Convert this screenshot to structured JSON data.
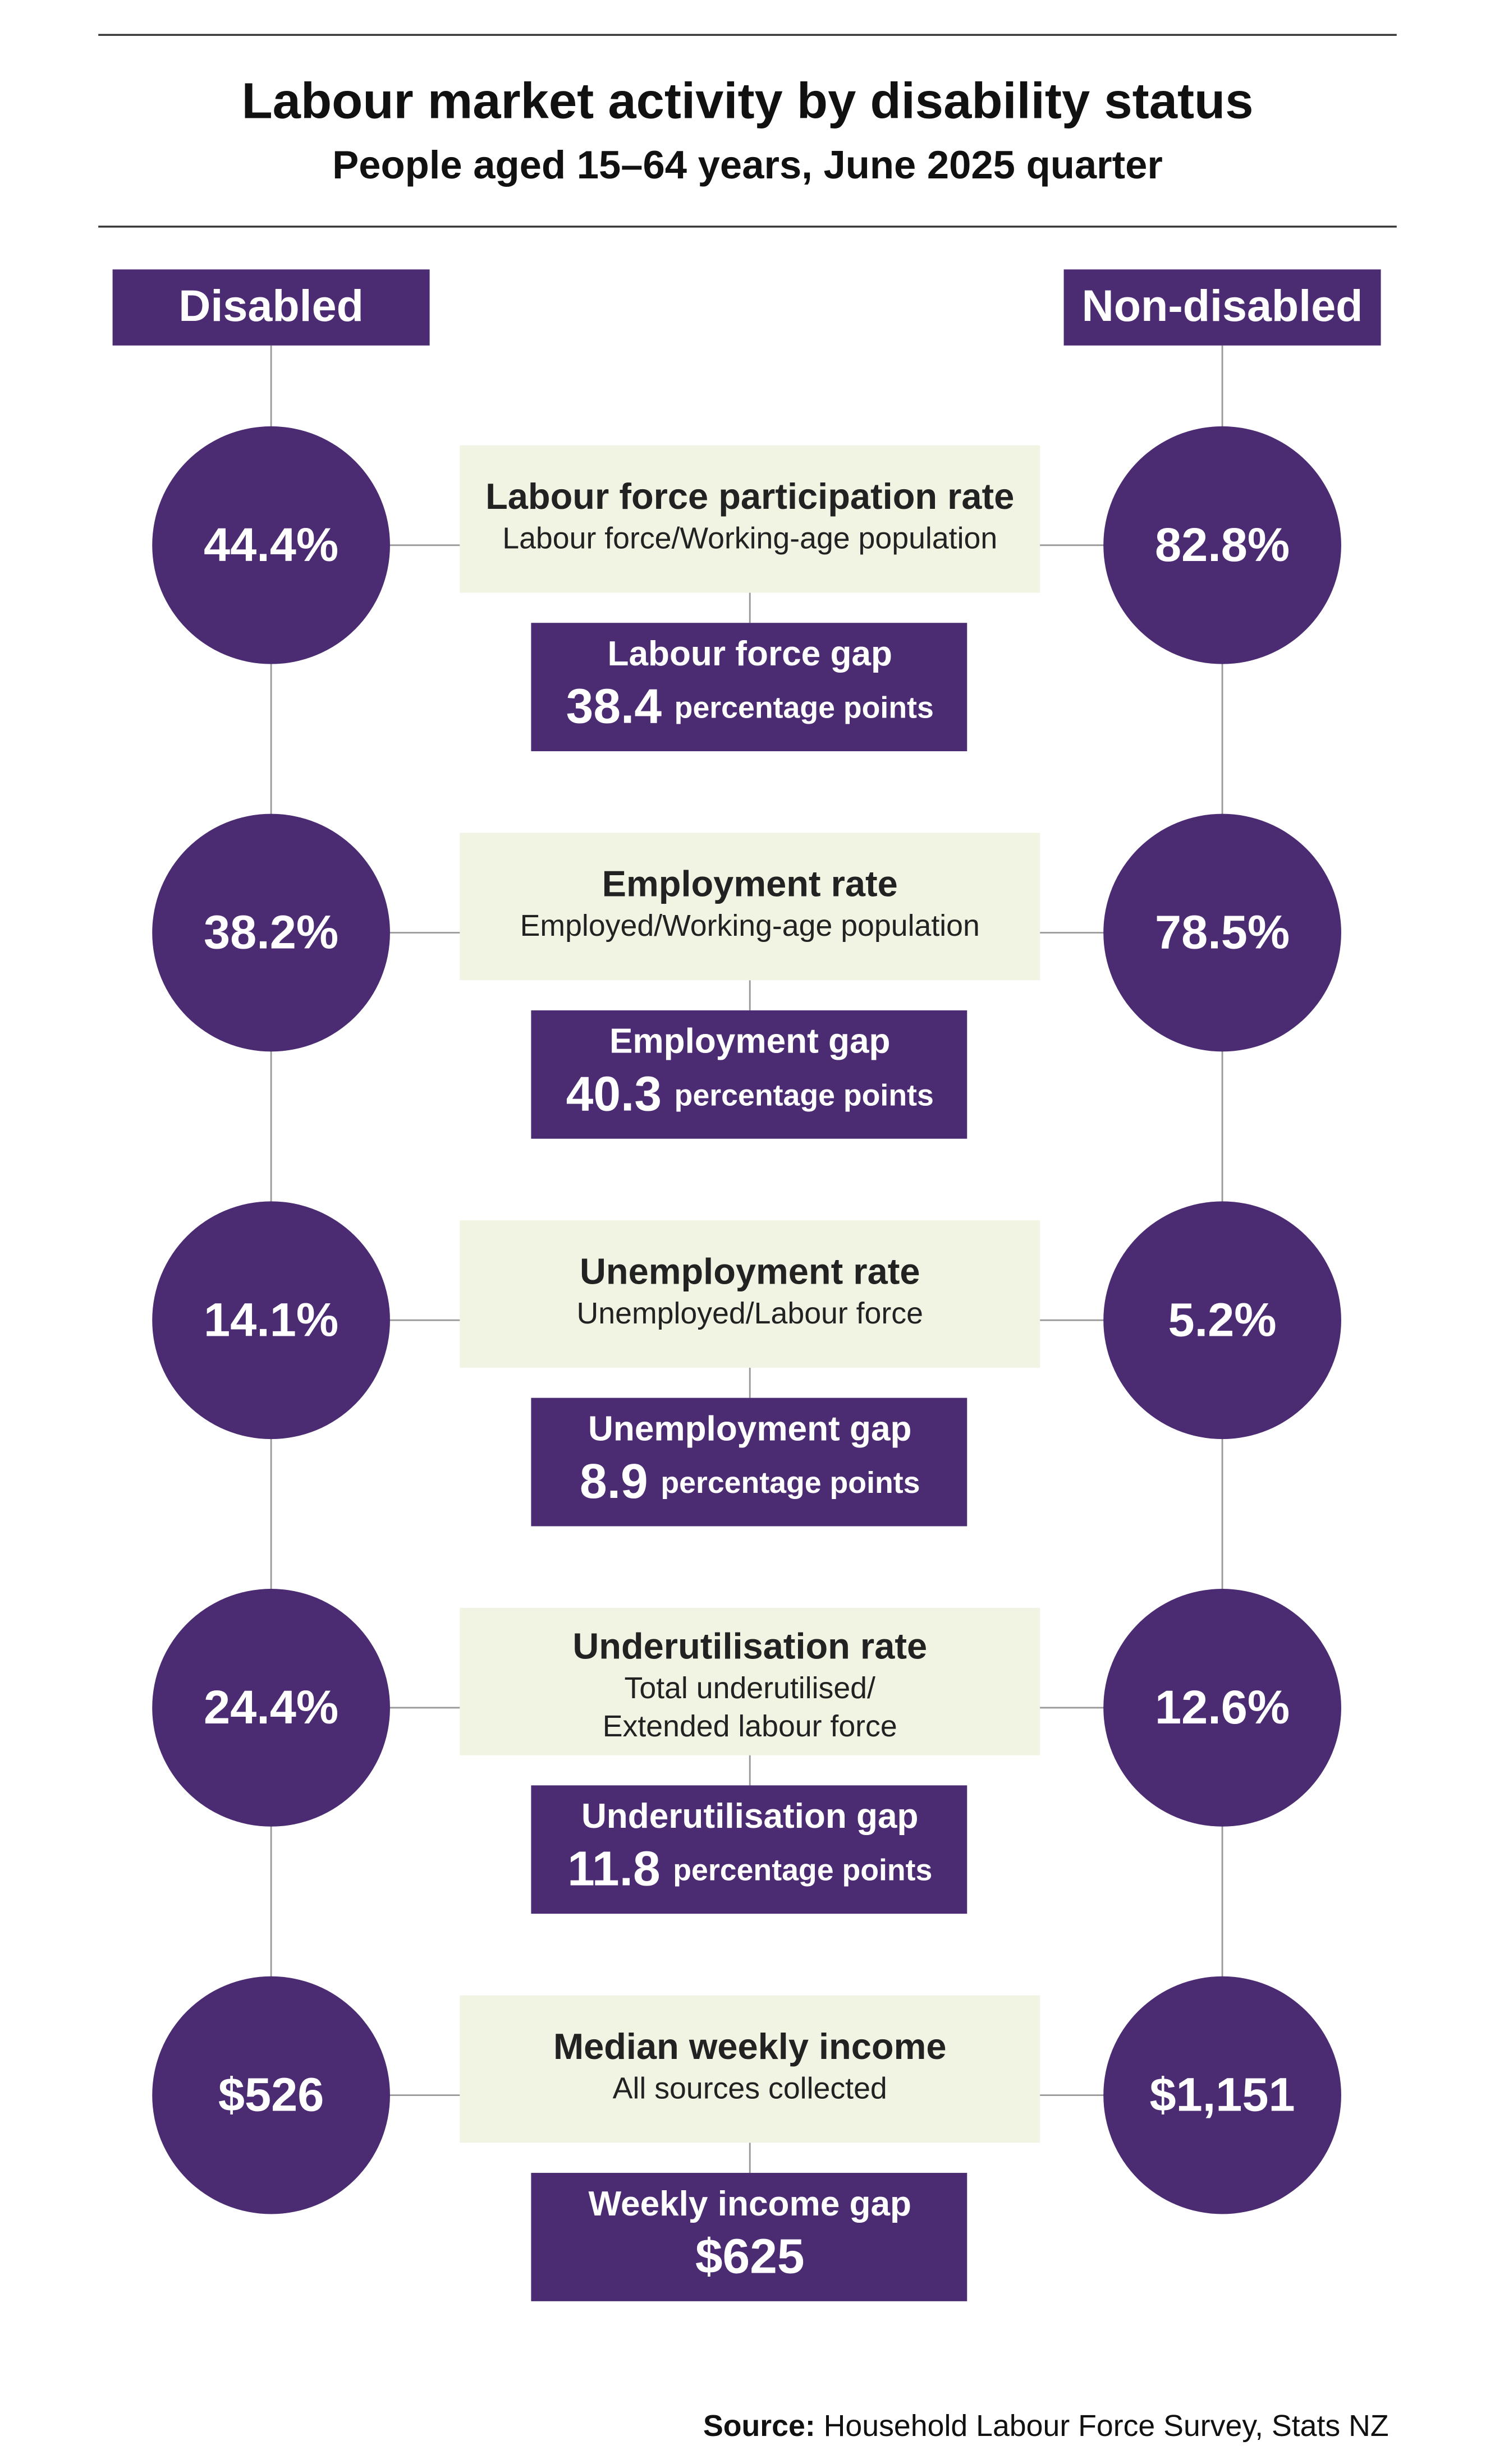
{
  "header": {
    "title": "Labour market activity by disability status",
    "subtitle": "People aged 15–64 years, June 2025 quarter"
  },
  "columns": {
    "left": "Disabled",
    "right": "Non-disabled"
  },
  "rows": [
    {
      "left": "44.4%",
      "right": "82.8%",
      "label": "Labour force participation rate",
      "sublabel": [
        "Labour force/Working-age population"
      ],
      "gap_label": "Labour force gap",
      "gap_value": "38.4",
      "gap_unit": "percentage points"
    },
    {
      "left": "38.2%",
      "right": "78.5%",
      "label": "Employment rate",
      "sublabel": [
        "Employed/Working-age population"
      ],
      "gap_label": "Employment gap",
      "gap_value": "40.3",
      "gap_unit": "percentage points"
    },
    {
      "left": "14.1%",
      "right": "5.2%",
      "label": "Unemployment rate",
      "sublabel": [
        "Unemployed/Labour force"
      ],
      "gap_label": "Unemployment gap",
      "gap_value": "8.9",
      "gap_unit": "percentage points"
    },
    {
      "left": "24.4%",
      "right": "12.6%",
      "label": "Underutilisation rate",
      "sublabel": [
        "Total underutilised/",
        "Extended labour force"
      ],
      "gap_label": "Underutilisation gap",
      "gap_value": "11.8",
      "gap_unit": "percentage points"
    },
    {
      "left": "$526",
      "right": "$1,151",
      "label": "Median weekly income",
      "sublabel": [
        "All sources collected"
      ],
      "gap_label": "Weekly income gap",
      "gap_value": "$625"
    }
  ],
  "source": {
    "label": "Source:",
    "text": "Household Labour Force Survey, Stats NZ"
  }
}
